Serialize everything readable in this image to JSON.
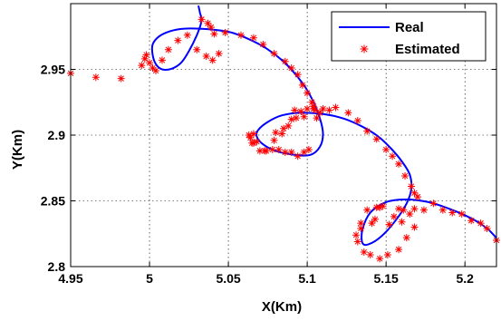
{
  "chart_data": {
    "type": "line",
    "title": "",
    "xlabel": "X(Km)",
    "ylabel": "Y(Km)",
    "xlim": [
      4.95,
      5.22
    ],
    "ylim": [
      2.8,
      3.0
    ],
    "x_ticks": [
      4.95,
      5.0,
      5.05,
      5.1,
      5.15,
      5.2
    ],
    "x_tick_labels": [
      "4.95",
      "5",
      "5.05",
      "5.1",
      "5.15",
      "5.2"
    ],
    "y_ticks": [
      2.8,
      2.85,
      2.9,
      2.95
    ],
    "y_tick_labels": [
      "2.8",
      "2.85",
      "2.9",
      "2.95"
    ],
    "grid": true,
    "legend_position": "top-right",
    "series": [
      {
        "name": "Real",
        "style": "line",
        "color": "#0000ff",
        "x": [
          5.031,
          5.032,
          5.033,
          5.03,
          5.025,
          5.02,
          5.014,
          5.008,
          5.004,
          5.002,
          5.002,
          5.006,
          5.013,
          5.022,
          5.032,
          5.042,
          5.052,
          5.063,
          5.074,
          5.084,
          5.092,
          5.099,
          5.104,
          5.108,
          5.11,
          5.108,
          5.102,
          5.092,
          5.08,
          5.072,
          5.068,
          5.069,
          5.075,
          5.084,
          5.096,
          5.11,
          5.122,
          5.134,
          5.145,
          5.153,
          5.16,
          5.165,
          5.166,
          5.163,
          5.156,
          5.147,
          5.139,
          5.135,
          5.135,
          5.14,
          5.15,
          5.163,
          5.177,
          5.19,
          5.2,
          5.208,
          5.215,
          5.222
        ],
        "y": [
          2.9985,
          2.993,
          2.987,
          2.976,
          2.964,
          2.955,
          2.9505,
          2.95,
          2.954,
          2.961,
          2.969,
          2.975,
          2.979,
          2.981,
          2.981,
          2.98,
          2.978,
          2.973,
          2.966,
          2.957,
          2.947,
          2.936,
          2.925,
          2.913,
          2.901,
          2.891,
          2.885,
          2.885,
          2.888,
          2.893,
          2.899,
          2.904,
          2.91,
          2.915,
          2.917,
          2.916,
          2.913,
          2.907,
          2.899,
          2.89,
          2.88,
          2.87,
          2.859,
          2.848,
          2.835,
          2.823,
          2.817,
          2.818,
          2.828,
          2.841,
          2.849,
          2.851,
          2.849,
          2.844,
          2.839,
          2.834,
          2.828,
          2.819
        ]
      },
      {
        "name": "Estimated",
        "style": "marker",
        "marker": "*",
        "color": "#ff0000",
        "x": [
          4.95,
          4.966,
          4.982,
          4.995,
          4.997,
          4.998,
          5.0,
          5.002,
          5.004,
          5.008,
          5.012,
          5.018,
          5.024,
          5.03,
          5.036,
          5.04,
          5.044,
          5.037,
          5.033,
          5.039,
          5.041,
          5.048,
          5.058,
          5.066,
          5.072,
          5.079,
          5.086,
          5.09,
          5.094,
          5.097,
          5.1,
          5.103,
          5.104,
          5.105,
          5.106,
          5.108,
          5.11,
          5.104,
          5.1,
          5.096,
          5.098,
          5.093,
          5.092,
          5.09,
          5.088,
          5.085,
          5.084,
          5.08,
          5.079,
          5.074,
          5.068,
          5.066,
          5.065,
          5.064,
          5.063,
          5.066,
          5.07,
          5.073,
          5.078,
          5.082,
          5.086,
          5.09,
          5.094,
          5.098,
          5.101,
          5.114,
          5.118,
          5.126,
          5.132,
          5.138,
          5.144,
          5.15,
          5.154,
          5.158,
          5.162,
          5.166,
          5.168,
          5.17,
          5.168,
          5.165,
          5.161,
          5.16,
          5.158,
          5.155,
          5.152,
          5.148,
          5.146,
          5.144,
          5.143,
          5.141,
          5.138,
          5.134,
          5.134,
          5.131,
          5.132,
          5.136,
          5.14,
          5.146,
          5.151,
          5.158,
          5.163,
          5.168,
          5.174,
          5.18,
          5.186,
          5.192,
          5.198,
          5.204,
          5.21,
          5.214,
          5.22
        ],
        "y": [
          2.947,
          2.944,
          2.943,
          2.953,
          2.958,
          2.961,
          2.955,
          2.951,
          2.949,
          2.957,
          2.965,
          2.972,
          2.976,
          2.965,
          2.96,
          2.957,
          2.962,
          2.985,
          2.988,
          2.982,
          2.977,
          2.978,
          2.976,
          2.974,
          2.969,
          2.962,
          2.956,
          2.951,
          2.946,
          2.938,
          2.932,
          2.925,
          2.922,
          2.919,
          2.913,
          2.917,
          2.92,
          2.92,
          2.92,
          2.918,
          2.914,
          2.913,
          2.919,
          2.912,
          2.907,
          2.905,
          2.901,
          2.902,
          2.896,
          2.888,
          2.895,
          2.901,
          2.894,
          2.898,
          2.9,
          2.894,
          2.888,
          2.888,
          2.889,
          2.889,
          2.887,
          2.887,
          2.884,
          2.887,
          2.889,
          2.919,
          2.921,
          2.917,
          2.911,
          2.903,
          2.897,
          2.889,
          2.884,
          2.878,
          2.869,
          2.861,
          2.856,
          2.853,
          2.844,
          2.84,
          2.843,
          2.834,
          2.844,
          2.838,
          2.832,
          2.846,
          2.845,
          2.845,
          2.836,
          2.833,
          2.843,
          2.829,
          2.833,
          2.824,
          2.819,
          2.811,
          2.809,
          2.806,
          2.809,
          2.813,
          2.822,
          2.83,
          2.843,
          2.848,
          2.843,
          2.841,
          2.84,
          2.835,
          2.833,
          2.829,
          2.82
        ]
      }
    ]
  }
}
